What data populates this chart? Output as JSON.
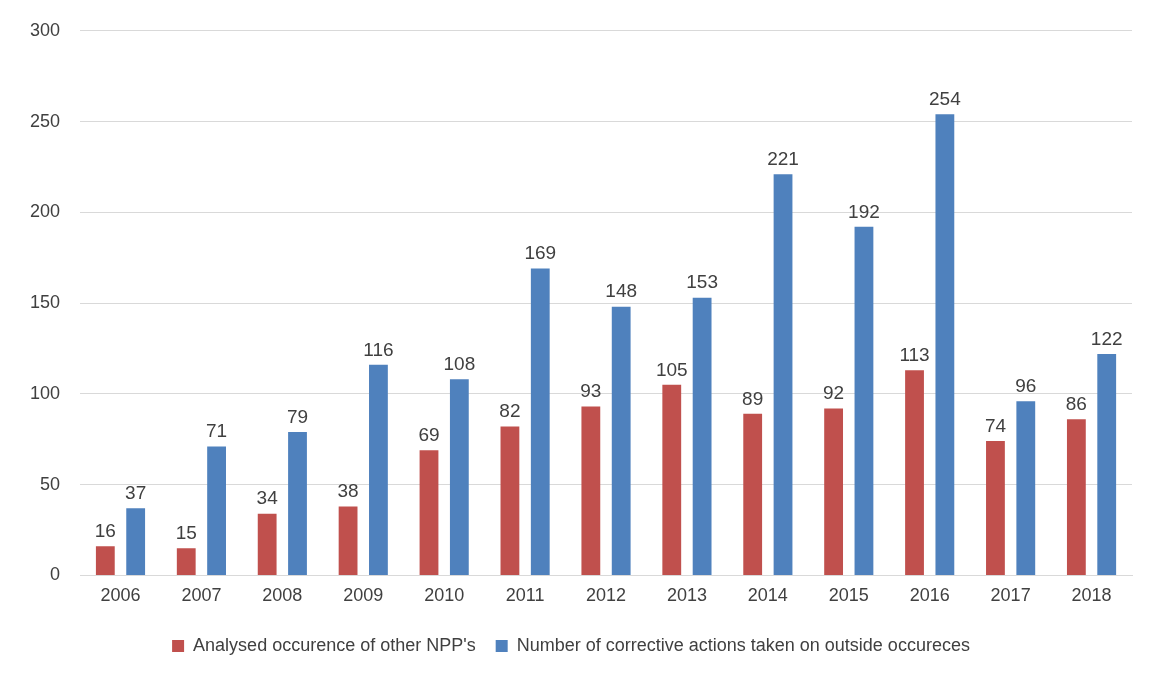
{
  "chart_data": {
    "type": "bar",
    "categories": [
      "2006",
      "2007",
      "2008",
      "2009",
      "2010",
      "2011",
      "2012",
      "2013",
      "2014",
      "2015",
      "2016",
      "2017",
      "2018"
    ],
    "series": [
      {
        "name": "Analysed occurence of other NPP's",
        "color": "#c0504d",
        "values": [
          16,
          15,
          34,
          38,
          69,
          82,
          93,
          105,
          89,
          92,
          113,
          74,
          86
        ]
      },
      {
        "name": "Number of corrective actions taken on outside occureces",
        "color": "#4f81bd",
        "values": [
          37,
          71,
          79,
          116,
          108,
          169,
          148,
          153,
          221,
          192,
          254,
          96,
          122
        ]
      }
    ],
    "ylim": [
      0,
      300
    ],
    "yticks": [
      0,
      50,
      100,
      150,
      200,
      250,
      300
    ],
    "grid": "y",
    "legend": "bottom",
    "data_labels": true
  }
}
